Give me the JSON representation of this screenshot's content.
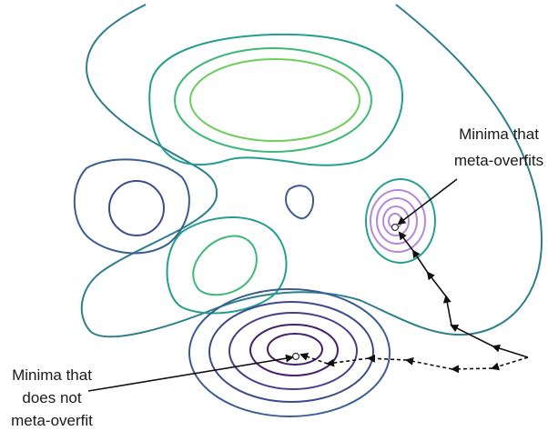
{
  "labels": {
    "overfit_line1": "Minima that",
    "overfit_line2": "meta-overfits",
    "nonoverfit_line1": "Minima that",
    "nonoverfit_line2": "does not",
    "nonoverfit_line3": "meta-overfit"
  },
  "colors": {
    "outer": "#2e7f8c",
    "mid_teal": "#239f8d",
    "green": "#3fb87a",
    "light_green": "#6fcd5e",
    "blue": "#3b5e91",
    "indigo": "#3d4b8c",
    "purple_dark": "#45206b",
    "purple_mid": "#4c3a8a",
    "lilac": "#b48ad8",
    "path": "#111111"
  }
}
